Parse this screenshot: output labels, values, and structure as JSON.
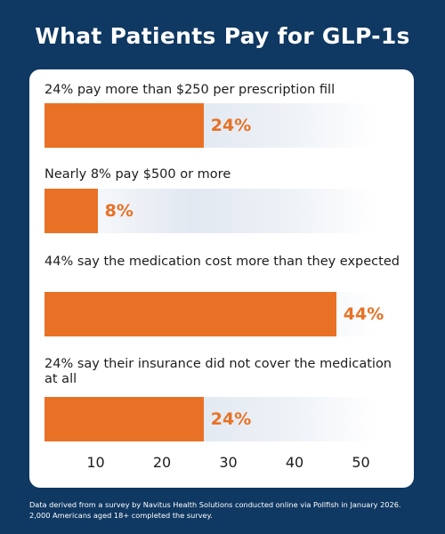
{
  "title": "What Patients Pay for GLP-1s",
  "chart_data": {
    "type": "bar",
    "orientation": "horizontal",
    "categories": [
      "24% pay more than $250 per prescription fill",
      "Nearly 8% pay $500 or more",
      "44% say the medication cost more than they expected",
      "24% say their insurance did not cover the medication at all"
    ],
    "values": [
      24,
      8,
      44,
      24
    ],
    "value_labels": [
      "24%",
      "8%",
      "44%",
      "24%"
    ],
    "xticks": [
      10,
      20,
      30,
      40,
      50
    ],
    "xlim": [
      0,
      50
    ],
    "bar_color": "#e87125",
    "grid": false
  },
  "footnote": "Data derived from a survey by Navitus Health Solutions conducted online via Pollfish in January 2026. 2,000 Americans aged 18+ completed the survey."
}
